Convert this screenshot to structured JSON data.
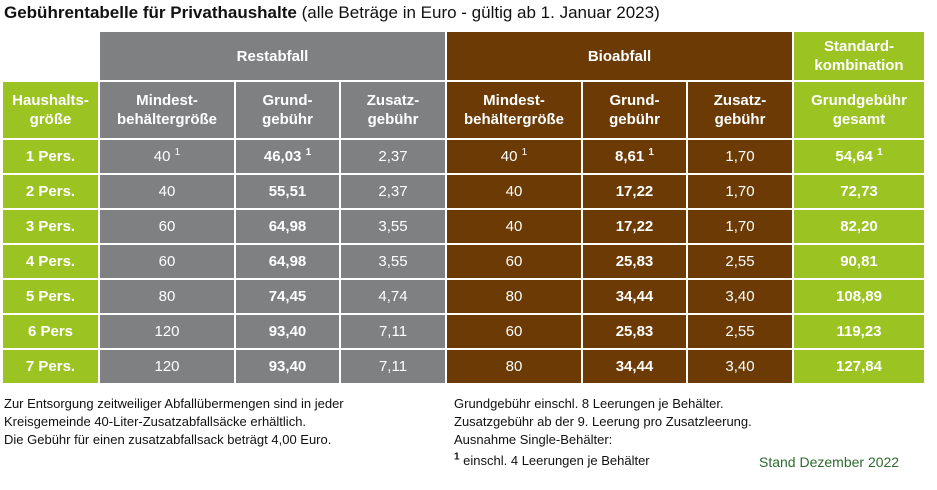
{
  "title": {
    "bold": "Gebührentabelle für Privathaushalte",
    "normal": " (alle Beträge in Euro - gültig ab 1. Januar 2023)"
  },
  "groups": {
    "restabfall": "Restabfall",
    "bioabfall": "Bioabfall",
    "standard_line1": "Standard-",
    "standard_line2": "kombination"
  },
  "headers": {
    "haushalt_1": "Haushalts-",
    "haushalt_2": "größe",
    "mindest_1": "Mindest-",
    "mindest_2": "behältergröße",
    "grund_1": "Grund-",
    "grund_2": "gebühr",
    "zusatz_1": "Zusatz-",
    "zusatz_2": "gebühr",
    "gesamt_1": "Grundgebühr",
    "gesamt_2": "gesamt"
  },
  "rows": [
    {
      "size": "1 Pers.",
      "r_min": "40",
      "r_min_sup": "1",
      "r_grund": "46,03",
      "r_grund_sup": "1",
      "r_zus": "2,37",
      "b_min": "40",
      "b_min_sup": "1",
      "b_grund": "8,61",
      "b_grund_sup": "1",
      "b_zus": "1,70",
      "total": "54,64",
      "total_sup": "1"
    },
    {
      "size": "2 Pers.",
      "r_min": "40",
      "r_grund": "55,51",
      "r_zus": "2,37",
      "b_min": "40",
      "b_grund": "17,22",
      "b_zus": "1,70",
      "total": "72,73"
    },
    {
      "size": "3 Pers.",
      "r_min": "60",
      "r_grund": "64,98",
      "r_zus": "3,55",
      "b_min": "40",
      "b_grund": "17,22",
      "b_zus": "1,70",
      "total": "82,20"
    },
    {
      "size": "4 Pers.",
      "r_min": "60",
      "r_grund": "64,98",
      "r_zus": "3,55",
      "b_min": "60",
      "b_grund": "25,83",
      "b_zus": "2,55",
      "total": "90,81"
    },
    {
      "size": "5 Pers.",
      "r_min": "80",
      "r_grund": "74,45",
      "r_zus": "4,74",
      "b_min": "80",
      "b_grund": "34,44",
      "b_zus": "3,40",
      "total": "108,89"
    },
    {
      "size": "6 Pers",
      "r_min": "120",
      "r_grund": "93,40",
      "r_zus": "7,11",
      "b_min": "60",
      "b_grund": "25,83",
      "b_zus": "2,55",
      "total": "119,23"
    },
    {
      "size": "7 Pers.",
      "r_min": "120",
      "r_grund": "93,40",
      "r_zus": "7,11",
      "b_min": "80",
      "b_grund": "34,44",
      "b_zus": "3,40",
      "total": "127,84"
    }
  ],
  "notes_left": [
    "Zur Entsorgung zeitweiliger Abfallübermengen sind in jeder",
    "Kreisgemeinde 40-Liter-Zusatzabfallsäcke erhältlich.",
    "Die Gebühr für einen zusatzabfallsack beträgt 4,00 Euro."
  ],
  "notes_right": [
    "Grundgebühr einschl. 8 Leerungen je Behälter.",
    "Zusatzgebühr ab der 9. Leerung pro Zusatzleerung.",
    "Ausnahme Single-Behälter:"
  ],
  "footnote_mark": "1",
  "footnote_text": " einschl. 4 Leerungen je Behälter",
  "stand": "Stand Dezember 2022",
  "colors": {
    "green": "#9bc322",
    "grey": "#7f8082",
    "brown": "#6b3a05",
    "stand_text": "#2f6b2f"
  }
}
